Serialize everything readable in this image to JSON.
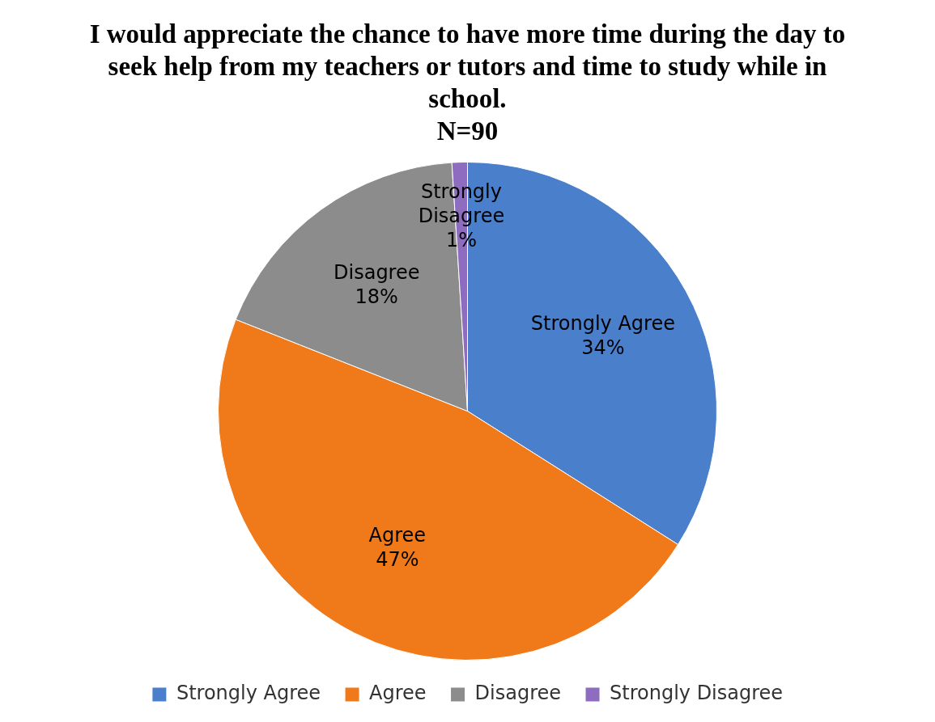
{
  "chart_data": {
    "type": "pie",
    "title": "I would appreciate the chance to have more time during the day to seek help from my teachers or tutors and time to study while in school.",
    "subtitle": "N=90",
    "categories": [
      "Strongly Agree",
      "Agree",
      "Disagree",
      "Strongly Disagree"
    ],
    "values": [
      34,
      47,
      18,
      1
    ],
    "value_labels": [
      "34%",
      "47%",
      "18%",
      "1%"
    ],
    "colors": [
      "#4a7fcb",
      "#f07a1a",
      "#8c8c8c",
      "#8e6cc0"
    ],
    "legend": "bottom"
  }
}
